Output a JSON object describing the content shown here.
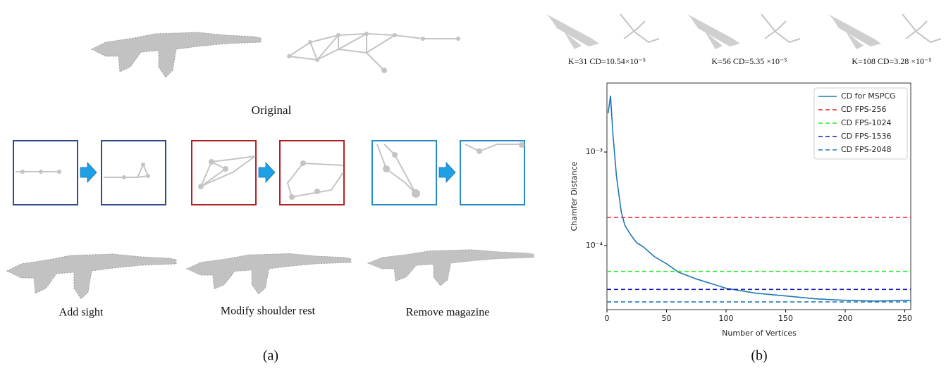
{
  "panel_a": {
    "original_label": "Original",
    "edits": [
      "Add sight",
      "Modify shoulder rest",
      "Remove magazine"
    ],
    "caption": "(a)"
  },
  "panel_b": {
    "samples": [
      "K=31 CD=10.54×10⁻⁵",
      "K=56 CD=5.35 ×10⁻⁵",
      "K=108 CD=3.28 ×10⁻⁵"
    ],
    "caption": "(b)"
  },
  "chart_data": {
    "type": "line",
    "xlabel": "Number of Vertices",
    "ylabel": "Chamfer Distance",
    "log_y": true,
    "xlim": [
      0,
      255
    ],
    "xticks": [
      0,
      50,
      100,
      150,
      200,
      250
    ],
    "ylim": [
      2.07e-05,
      0.00546
    ],
    "yticks": [
      {
        "value": 0.001,
        "label": "10⁻³"
      },
      {
        "value": 0.0001,
        "label": "10⁻⁴"
      }
    ],
    "legend": "upper right",
    "series": [
      {
        "name": "CD for MSPCG",
        "color": "#1f77b4",
        "x": [
          1,
          3,
          5,
          8,
          12,
          15,
          20,
          25,
          30,
          40,
          50,
          60,
          75,
          100,
          125,
          150,
          175,
          200,
          225,
          255
        ],
        "values": [
          0.0026,
          0.004,
          0.00157,
          0.00055,
          0.00023,
          0.000165,
          0.00013,
          0.000107,
          9.8e-05,
          7.6e-05,
          6.4e-05,
          5.2e-05,
          4.4e-05,
          3.5e-05,
          3.1e-05,
          2.9e-05,
          2.7e-05,
          2.6e-05,
          2.55e-05,
          2.6e-05
        ]
      },
      {
        "name": "CD FPS-256",
        "color": "#e8242a",
        "hline": 0.0002
      },
      {
        "name": "CD FPS-1024",
        "color": "#2ee82a",
        "hline": 5.3e-05
      },
      {
        "name": "CD FPS-1536",
        "color": "#1a1ab4",
        "hline": 3.4e-05
      },
      {
        "name": "CD FPS-2048",
        "color": "#1f77b4",
        "hline": 2.5e-05
      }
    ]
  }
}
